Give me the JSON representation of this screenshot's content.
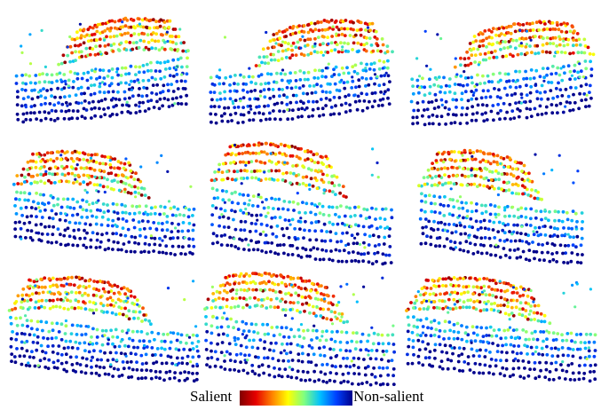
{
  "figure": {
    "panel_count": 9,
    "grid": {
      "rows": 3,
      "cols": 3
    }
  },
  "colormap": {
    "name": "jet",
    "stops": [
      "#800000",
      "#e60000",
      "#ff8000",
      "#ffff00",
      "#80ff80",
      "#00c0ff",
      "#0040ff",
      "#00008b"
    ]
  },
  "legend": {
    "low_label": "Salient",
    "high_label": "Non-salient"
  }
}
